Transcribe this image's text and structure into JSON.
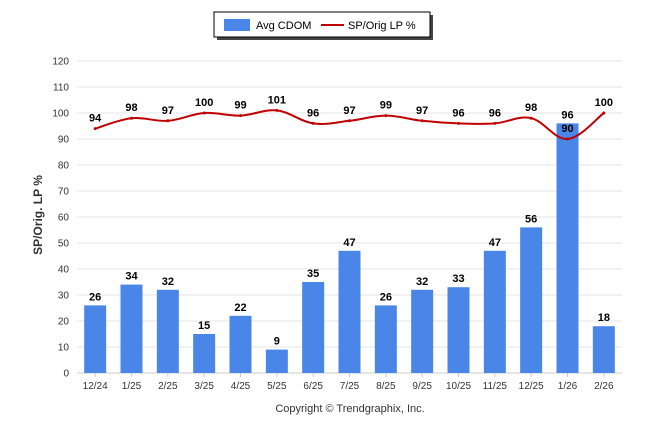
{
  "chart_data": {
    "type": "bar",
    "categories": [
      "12/24",
      "1/25",
      "2/25",
      "3/25",
      "4/25",
      "5/25",
      "6/25",
      "7/25",
      "8/25",
      "9/25",
      "10/25",
      "11/25",
      "12/25",
      "1/26",
      "2/26"
    ],
    "series": [
      {
        "name": "Avg CDOM",
        "type": "bar",
        "color": "#4a86e8",
        "values": [
          26,
          34,
          32,
          15,
          22,
          9,
          35,
          47,
          26,
          32,
          33,
          47,
          56,
          96,
          18
        ]
      },
      {
        "name": "SP/Orig LP %",
        "type": "line",
        "color": "#c00000",
        "values": [
          94,
          98,
          97,
          100,
          99,
          101,
          96,
          97,
          99,
          97,
          96,
          96,
          98,
          90,
          100
        ]
      }
    ],
    "title": "",
    "xlabel": "",
    "ylabel": "SP/Orig. LP %",
    "ylim": [
      0,
      120
    ],
    "yticks": [
      0,
      10,
      20,
      30,
      40,
      50,
      60,
      70,
      80,
      90,
      100,
      110,
      120
    ],
    "grid": true,
    "legend_position": "top-center"
  },
  "footer": {
    "copyright": "Copyright © Trendgraphix, Inc."
  }
}
